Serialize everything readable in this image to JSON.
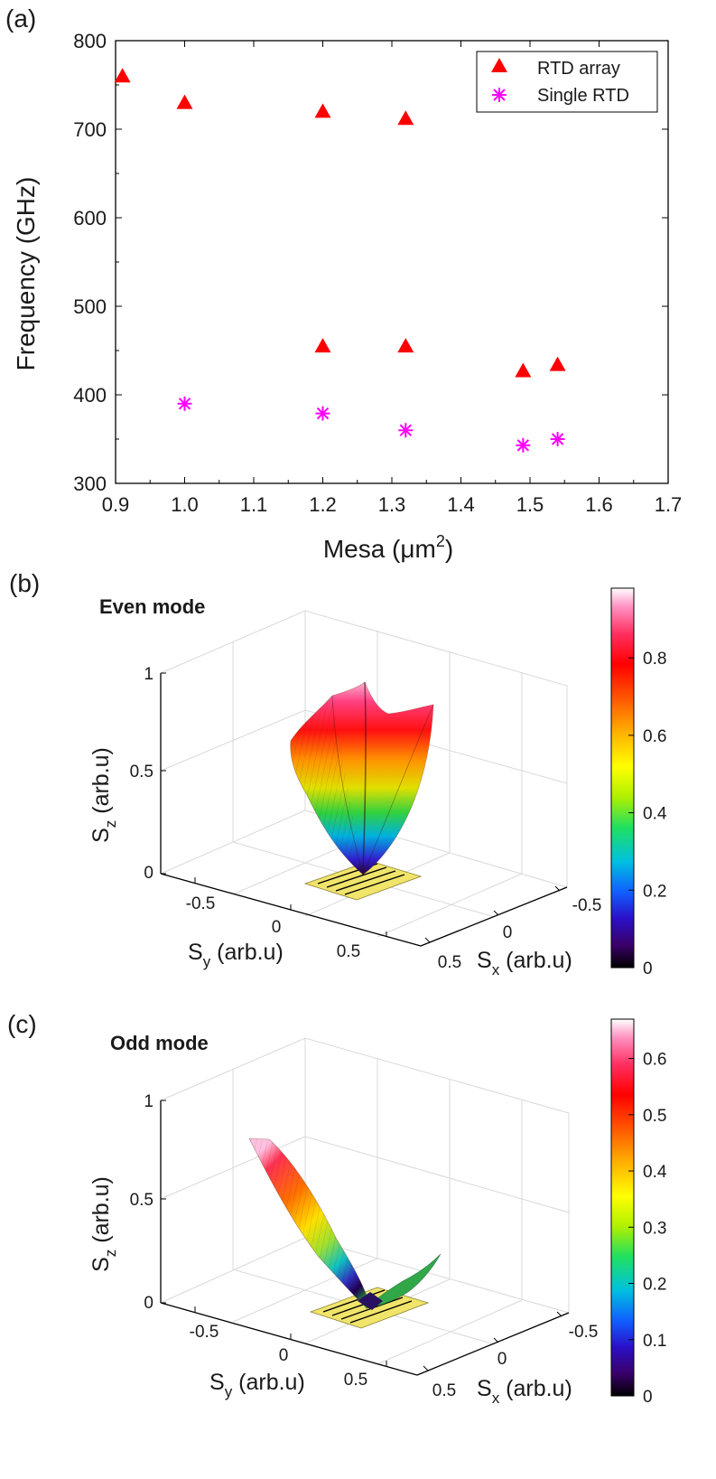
{
  "panel_labels": {
    "a": "(a)",
    "b": "(b)",
    "c": "(c)"
  },
  "colors": {
    "rtd_array": "#ff0000",
    "single_rtd": "#ff00ff",
    "axis": "#000000",
    "grid": "#d9d9d9",
    "electrode": "#f0e46a"
  },
  "chart_data": [
    {
      "type": "scatter",
      "panel": "(a)",
      "xlabel": "Mesa (μm",
      "xlabel_sup": "2",
      "xlabel_close": ")",
      "ylabel": "Frequency (GHz)",
      "xlim": [
        0.9,
        1.7
      ],
      "ylim": [
        300,
        800
      ],
      "x_ticks": [
        "0.9",
        "1.0",
        "1.1",
        "1.2",
        "1.3",
        "1.4",
        "1.5",
        "1.6",
        "1.7"
      ],
      "y_ticks": [
        "300",
        "400",
        "500",
        "600",
        "700",
        "800"
      ],
      "legend_position": "top-right",
      "series": [
        {
          "name": "RTD array",
          "marker": "triangle",
          "points": [
            [
              0.91,
              760
            ],
            [
              1.0,
              730
            ],
            [
              1.2,
              720
            ],
            [
              1.32,
              712
            ],
            [
              1.2,
              455
            ],
            [
              1.32,
              455
            ],
            [
              1.49,
              427
            ],
            [
              1.54,
              434
            ]
          ]
        },
        {
          "name": "Single RTD",
          "marker": "asterisk",
          "points": [
            [
              1.0,
              390
            ],
            [
              1.2,
              379
            ],
            [
              1.32,
              360
            ],
            [
              1.49,
              343
            ],
            [
              1.54,
              350
            ]
          ]
        }
      ]
    },
    {
      "type": "surface3d",
      "panel": "(b)",
      "title": "Even mode",
      "zlabel": "S",
      "zlabel_sub": "z",
      "zlabel_rest": " (arb.u)",
      "ylabel": "S",
      "ylabel_sub": "y",
      "ylabel_rest": " (arb.u)",
      "xlabel": "S",
      "xlabel_sub": "x",
      "xlabel_rest": " (arb.u)",
      "z_ticks": [
        "0",
        "0.5",
        "1"
      ],
      "y_ticks": [
        "-0.5",
        "0",
        "0.5"
      ],
      "x_ticks": [
        "-0.5",
        "0",
        "0.5"
      ],
      "colorbar": {
        "min": 0,
        "max": 0.98,
        "ticks": [
          "0",
          "0.2",
          "0.4",
          "0.6",
          "0.8"
        ]
      }
    },
    {
      "type": "surface3d",
      "panel": "(c)",
      "title": "Odd mode",
      "zlabel": "S",
      "zlabel_sub": "z",
      "zlabel_rest": " (arb.u)",
      "ylabel": "S",
      "ylabel_sub": "y",
      "ylabel_rest": " (arb.u)",
      "xlabel": "S",
      "xlabel_sub": "x",
      "xlabel_rest": " (arb.u)",
      "z_ticks": [
        "0",
        "0.5",
        "1"
      ],
      "y_ticks": [
        "-0.5",
        "0",
        "0.5"
      ],
      "x_ticks": [
        "-0.5",
        "0",
        "0.5"
      ],
      "colorbar": {
        "min": 0,
        "max": 0.67,
        "ticks": [
          "0",
          "0.1",
          "0.2",
          "0.3",
          "0.4",
          "0.5",
          "0.6"
        ]
      }
    }
  ]
}
